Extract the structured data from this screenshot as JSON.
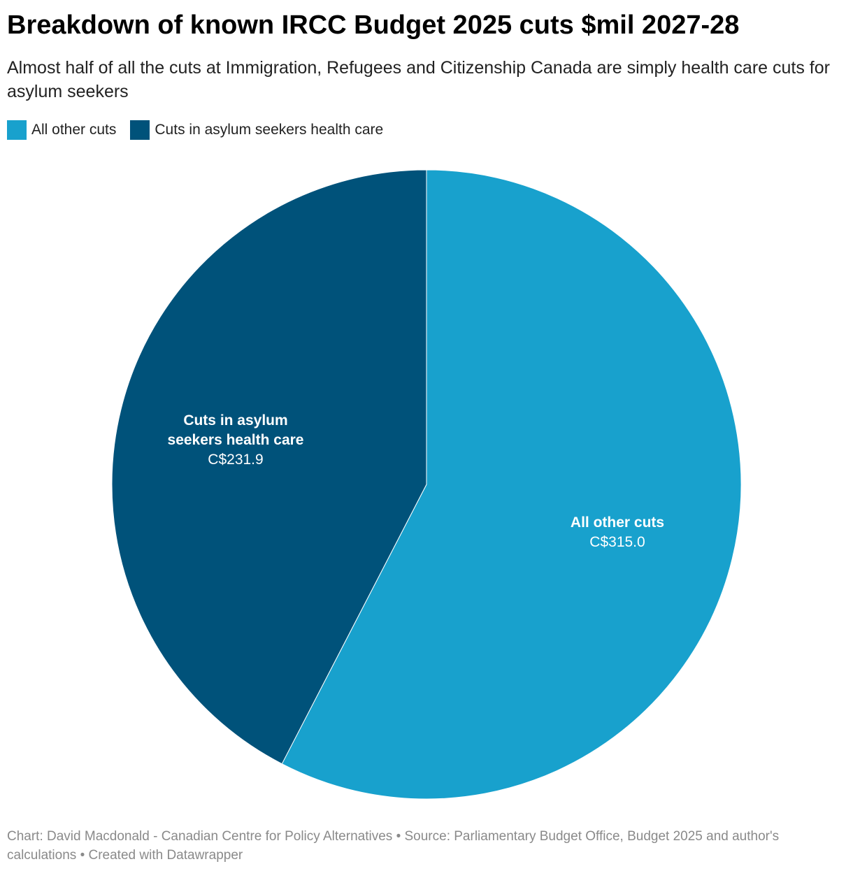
{
  "title": "Breakdown of known IRCC Budget 2025 cuts $mil 2027-28",
  "subtitle": "Almost half of all the cuts at Immigration, Refugees and Citizenship Canada are simply health care cuts for asylum seekers",
  "legend": [
    {
      "label": "All other cuts",
      "color": "#18a1cd"
    },
    {
      "label": "Cuts in asylum seekers health care",
      "color": "#00527a"
    }
  ],
  "chart_data": {
    "type": "pie",
    "slices": [
      {
        "label": "All other cuts",
        "value": 315.0,
        "display_value": "C$315.0",
        "color": "#18a1cd"
      },
      {
        "label": "Cuts in asylum seekers health care",
        "value": 231.9,
        "display_value": "C$231.9",
        "color": "#00527a"
      }
    ],
    "labels": {
      "other_line1": "All other cuts",
      "other_value": "C$315.0",
      "health_line1": "Cuts in asylum",
      "health_line2": "seekers health care",
      "health_value": "C$231.9"
    }
  },
  "footer": {
    "chart_credit": "Chart: David Macdonald - Canadian Centre for Policy Alternatives",
    "source": "Source: Parliamentary Budget Office, Budget 2025 and author's calculations",
    "created": "Created with Datawrapper"
  }
}
